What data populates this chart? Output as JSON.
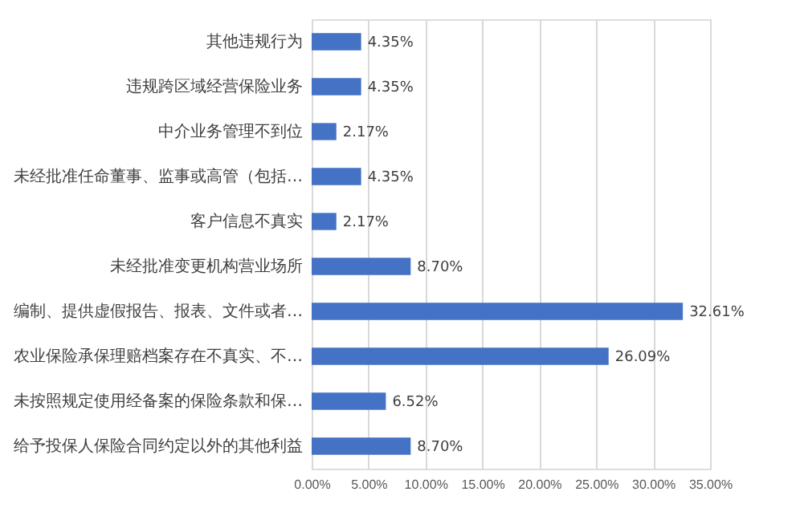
{
  "chart_data": {
    "type": "bar",
    "orientation": "horizontal",
    "categories": [
      "其他违规行为",
      "违规跨区域经营保险业务",
      "中介业务管理不到位",
      "未经批准任命董事、监事或高管（包括…",
      "客户信息不真实",
      "未经批准变更机构营业场所",
      "编制、提供虚假报告、报表、文件或者…",
      "农业保险承保理赔档案存在不真实、不…",
      "未按照规定使用经备案的保险条款和保…",
      "给予投保人保险合同约定以外的其他利益"
    ],
    "values": [
      4.35,
      4.35,
      2.17,
      4.35,
      2.17,
      8.7,
      32.61,
      26.09,
      6.52,
      8.7
    ],
    "value_labels": [
      "4.35%",
      "4.35%",
      "2.17%",
      "4.35%",
      "2.17%",
      "8.70%",
      "32.61%",
      "26.09%",
      "6.52%",
      "8.70%"
    ],
    "color": "#4472c4",
    "xlim": [
      0,
      35
    ],
    "xticks": [
      {
        "value": 0,
        "label": "0.00%"
      },
      {
        "value": 5,
        "label": "5.00%"
      },
      {
        "value": 10,
        "label": "10.00%"
      },
      {
        "value": 15,
        "label": "15.00%"
      },
      {
        "value": 20,
        "label": "20.00%"
      },
      {
        "value": 25,
        "label": "25.00%"
      },
      {
        "value": 30,
        "label": "30.00%"
      },
      {
        "value": 35,
        "label": "35.00%"
      }
    ],
    "grid": "x"
  }
}
